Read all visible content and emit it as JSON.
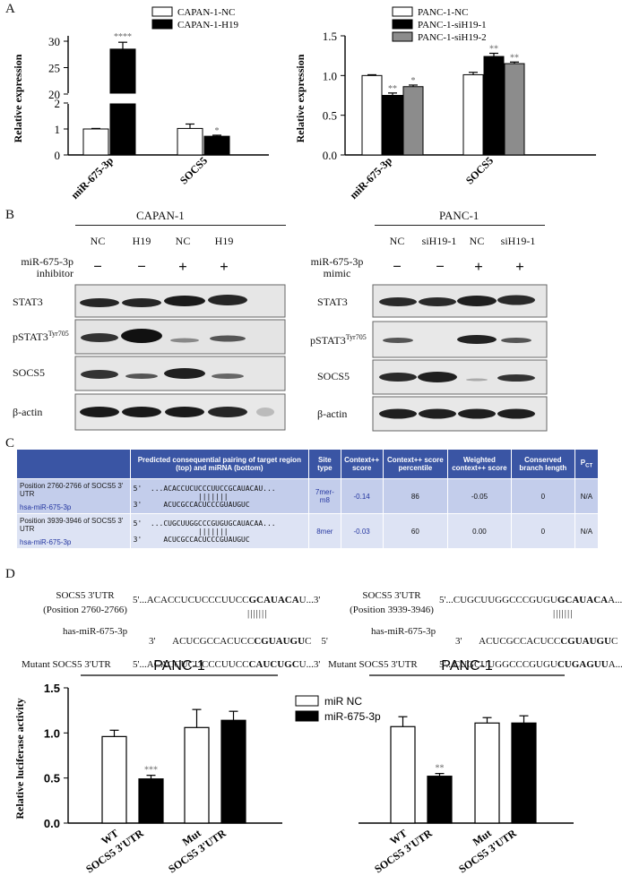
{
  "panels": {
    "A": "A",
    "B": "B",
    "C": "C",
    "D": "D"
  },
  "panelA_left": {
    "chart_data": {
      "type": "bar",
      "categories": [
        "miR-675-3p",
        "SOCS5"
      ],
      "series": [
        {
          "name": "CAPAN-1-NC",
          "values": [
            1.0,
            1.02
          ],
          "errors": [
            0.02,
            0.17
          ]
        },
        {
          "name": "CAPAN-1-H19",
          "values": [
            28.5,
            0.72
          ],
          "errors": [
            1.3,
            0.04
          ]
        }
      ],
      "ylabel": "Relative expression",
      "yticks_low": [
        "0",
        "1",
        "2"
      ],
      "yticks_high": [
        "20",
        "25",
        "30"
      ],
      "ylim_low": [
        0,
        2
      ],
      "ylim_high": [
        20,
        30
      ],
      "annotations": [
        "****",
        "*"
      ],
      "legend_placement": "top"
    }
  },
  "panelA_right": {
    "chart_data": {
      "type": "bar",
      "categories": [
        "miR-675-3p",
        "SOCS5"
      ],
      "series": [
        {
          "name": "PANC-1-NC",
          "values": [
            1.0,
            1.01
          ],
          "errors": [
            0.01,
            0.03
          ]
        },
        {
          "name": "PANC-1-siH19-1",
          "values": [
            0.75,
            1.24
          ],
          "errors": [
            0.03,
            0.04
          ]
        },
        {
          "name": "PANC-1-siH19-2",
          "values": [
            0.86,
            1.15
          ],
          "errors": [
            0.02,
            0.02
          ]
        }
      ],
      "ylabel": "Relative expression",
      "yticks": [
        "0.0",
        "0.5",
        "1.0",
        "1.5"
      ],
      "ylim": [
        0,
        1.5
      ],
      "annotations": [
        "**",
        "*",
        "**",
        "**"
      ],
      "legend_placement": "top"
    }
  },
  "panelB": {
    "left": {
      "title": "CAPAN-1",
      "lanes": [
        "NC",
        "H19",
        "NC",
        "H19"
      ],
      "treatment": "miR-675-3p inhibitor",
      "treatment_l1": "miR-675-3p",
      "treatment_l2": "inhibitor",
      "signs": [
        "−",
        "−",
        "+",
        "+"
      ],
      "blots": [
        "STAT3",
        "pSTAT3",
        "SOCS5",
        "β-actin"
      ],
      "psup": "Tyr705"
    },
    "right": {
      "title": "PANC-1",
      "lanes": [
        "NC",
        "siH19-1",
        "NC",
        "siH19-1"
      ],
      "treatment": "miR-675-3p mimic",
      "treatment_l1": "miR-675-3p",
      "treatment_l2": "mimic",
      "signs": [
        "−",
        "−",
        "+",
        "+"
      ],
      "blots": [
        "STAT3",
        "pSTAT3",
        "SOCS5",
        "β-actin"
      ],
      "psup": "Tyr705"
    }
  },
  "panelC": {
    "headers": [
      "",
      "Predicted consequential pairing of target region (top) and miRNA (bottom)",
      "Site type",
      "Context++ score",
      "Context++ score percentile",
      "Weighted context++ score",
      "Conserved branch length",
      "P"
    ],
    "pct_sub": "CT",
    "rows": [
      {
        "position": "Position 2760-2766 of SOCS5 3' UTR",
        "mirna": "hsa-miR-675-3p",
        "top": "5'  ...ACACCUCUCCCUUCCGCAUACAU...",
        "mid": "               |||||||",
        "bot": "3'     ACUCGCCACUCCCGUAUGUC",
        "site": "7mer-m8",
        "ctx": "-0.14",
        "pct": "86",
        "weighted": "-0.05",
        "branch": "0",
        "p": "N/A"
      },
      {
        "position": "Position 3939-3946 of SOCS5 3' UTR",
        "mirna": "hsa-miR-675-3p",
        "top": "5'  ...CUGCUUGGCCCGUGUGCAUACAA...",
        "mid": "               |||||||",
        "bot": "3'     ACUCGCCACUCCCGUAUGUC",
        "site": "8mer",
        "ctx": "-0.03",
        "pct": "60",
        "weighted": "0.00",
        "branch": "0",
        "p": "N/A"
      }
    ]
  },
  "panelD": {
    "left": {
      "label1": "SOCS5 3'UTR",
      "label2": "(Position 2760-2766)",
      "seq_wt_pre": "5'...ACACCUCUCCCUUCC",
      "seq_wt_bold": "GCAUACA",
      "seq_wt_post": "U...3'",
      "mir_label": "has-miR-675-3p",
      "mir_pre": "3'       ACUCGCCACUCC",
      "mir_bold": "CGUAUGU",
      "mir_post": "C    5'",
      "mut_label": "Mutant SOCS5 3'UTR",
      "mut_pre": "5'...ACACCUCUCCCUUCC",
      "mut_bold": "CAUCUGC",
      "mut_post": "U...3'"
    },
    "right": {
      "label1": "SOCS5 3'UTR",
      "label2": "(Position 3939-3946)",
      "seq_wt_pre": "5'...CUGCUUGGCCCGUGU",
      "seq_wt_bold": "GCAUACA",
      "seq_wt_post": "A...3'",
      "mir_label": "has-miR-675-3p",
      "mir_pre": "3'       ACUCGCCACUCC",
      "mir_bold": "CGUAUGU",
      "mir_post": "C    5'",
      "mut_label": "Mutant SOCS5 3'UTR",
      "mut_pre": "5'...CUGCUUGGCCCGUGU",
      "mut_bold": "CUGAGUU",
      "mut_post": "A...3'"
    },
    "chart_data": {
      "type": "bar",
      "groups": [
        {
          "title": "PANC-1",
          "categories": [
            "WT SOCS5 3'UTR",
            "Mut SOCS5 3'UTR"
          ]
        },
        {
          "title": "PANC-1",
          "categories": [
            "WT SOCS5 3'UTR",
            "Mut SOCS5 3'UTR"
          ]
        }
      ],
      "series": [
        {
          "name": "miR NC",
          "values": [
            0.96,
            1.06,
            1.07,
            1.11
          ],
          "errors": [
            0.07,
            0.2,
            0.11,
            0.06
          ]
        },
        {
          "name": "miR-675-3p",
          "values": [
            0.49,
            1.14,
            0.52,
            1.11
          ],
          "errors": [
            0.04,
            0.1,
            0.03,
            0.08
          ]
        }
      ],
      "cat_l1": [
        "WT",
        "Mut",
        "WT",
        "Mut"
      ],
      "cat_l2": [
        "SOCS5 3'UTR",
        "SOCS5 3'UTR",
        "SOCS5 3'UTR",
        "SOCS5 3'UTR"
      ],
      "ylabel": "Relative luciferase activity",
      "yticks": [
        "0.0",
        "0.5",
        "1.0",
        "1.5"
      ],
      "ylim": [
        0,
        1.5
      ],
      "annotations": [
        "***",
        "**"
      ],
      "legend_placement": "center"
    }
  }
}
